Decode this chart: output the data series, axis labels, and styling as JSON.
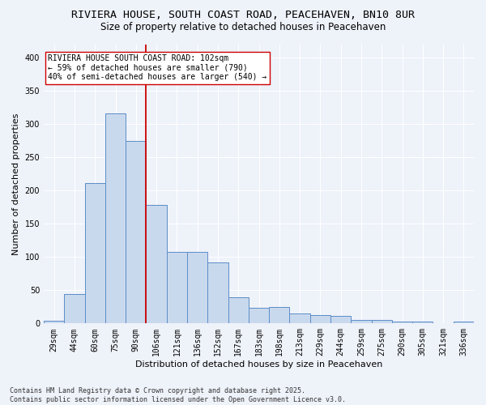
{
  "title_line1": "RIVIERA HOUSE, SOUTH COAST ROAD, PEACEHAVEN, BN10 8UR",
  "title_line2": "Size of property relative to detached houses in Peacehaven",
  "xlabel": "Distribution of detached houses by size in Peacehaven",
  "ylabel": "Number of detached properties",
  "bar_labels": [
    "29sqm",
    "44sqm",
    "60sqm",
    "75sqm",
    "90sqm",
    "106sqm",
    "121sqm",
    "136sqm",
    "152sqm",
    "167sqm",
    "183sqm",
    "198sqm",
    "213sqm",
    "229sqm",
    "244sqm",
    "259sqm",
    "275sqm",
    "290sqm",
    "305sqm",
    "321sqm",
    "336sqm"
  ],
  "bar_values": [
    4,
    44,
    211,
    316,
    275,
    179,
    108,
    108,
    92,
    40,
    24,
    25,
    15,
    13,
    11,
    5,
    5,
    3,
    3,
    1,
    3
  ],
  "bar_color": "#c9d9ed",
  "bar_edge_color": "#5b8dc8",
  "vline_color": "#cc0000",
  "annotation_text": "RIVIERA HOUSE SOUTH COAST ROAD: 102sqm\n← 59% of detached houses are smaller (790)\n40% of semi-detached houses are larger (540) →",
  "annotation_box_color": "#ffffff",
  "annotation_box_edge": "#cc0000",
  "ylim": [
    0,
    420
  ],
  "yticks": [
    0,
    50,
    100,
    150,
    200,
    250,
    300,
    350,
    400
  ],
  "footer_line1": "Contains HM Land Registry data © Crown copyright and database right 2025.",
  "footer_line2": "Contains public sector information licensed under the Open Government Licence v3.0.",
  "background_color": "#eef2f9",
  "grid_color": "#ffffff",
  "title_fontsize": 9.5,
  "subtitle_fontsize": 8.5,
  "axis_label_fontsize": 8,
  "tick_fontsize": 7,
  "footer_fontsize": 6,
  "annotation_fontsize": 7
}
